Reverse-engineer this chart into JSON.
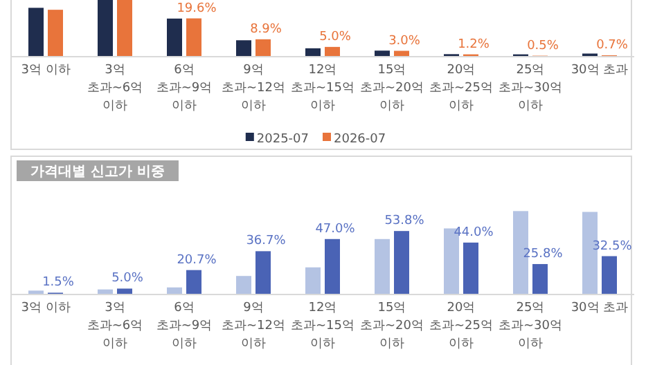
{
  "chart_data": [
    {
      "type": "bar",
      "categories": [
        "3억 이하",
        "3억 초과~6억 이하",
        "6억 초과~9억 이하",
        "9억 초과~12억 이하",
        "12억 초과~15억 이하",
        "15억 초과~20억 이하",
        "20억 초과~25억 이하",
        "25억 초과~30억 이하",
        "30억 초과"
      ],
      "series": [
        {
          "name": "2025-07",
          "color": "#1f2d4e",
          "values": [
            25,
            29,
            19.5,
            8.4,
            4.3,
            3.1,
            1.3,
            1.2,
            1.6
          ]
        },
        {
          "name": "2026-07",
          "color": "#e8743b",
          "values": [
            24,
            29,
            19.6,
            8.9,
            5.0,
            3.0,
            1.2,
            0.5,
            0.7
          ],
          "value_labels": [
            null,
            null,
            "19.6%",
            "8.9%",
            "5.0%",
            "3.0%",
            "1.2%",
            "0.5%",
            "0.7%"
          ]
        }
      ],
      "ylim": [
        0,
        29
      ],
      "legend": "bottom"
    },
    {
      "type": "bar",
      "title": "가격대별 신고가 비중",
      "categories": [
        "3억 이하",
        "3억 초과~6억 이하",
        "6억 초과~9억 이하",
        "9억 초과~12억 이하",
        "12억 초과~15억 이하",
        "15억 초과~20억 이하",
        "20억 초과~25억 이하",
        "25억 초과~30억 이하",
        "30억 초과"
      ],
      "series": [
        {
          "color": "#b4c3e3",
          "values": [
            3.3,
            4.3,
            6,
            15.7,
            23,
            47,
            56,
            70.7,
            70
          ]
        },
        {
          "color": "#4a63b5",
          "values": [
            1.5,
            5.0,
            20.7,
            36.7,
            47.0,
            53.8,
            44.0,
            25.8,
            32.5
          ],
          "value_labels": [
            "1.5%",
            "5.0%",
            "20.7%",
            "36.7%",
            "47.0%",
            "53.8%",
            "44.0%",
            "25.8%",
            "32.5%"
          ]
        }
      ],
      "ylim": [
        0,
        75
      ]
    }
  ]
}
